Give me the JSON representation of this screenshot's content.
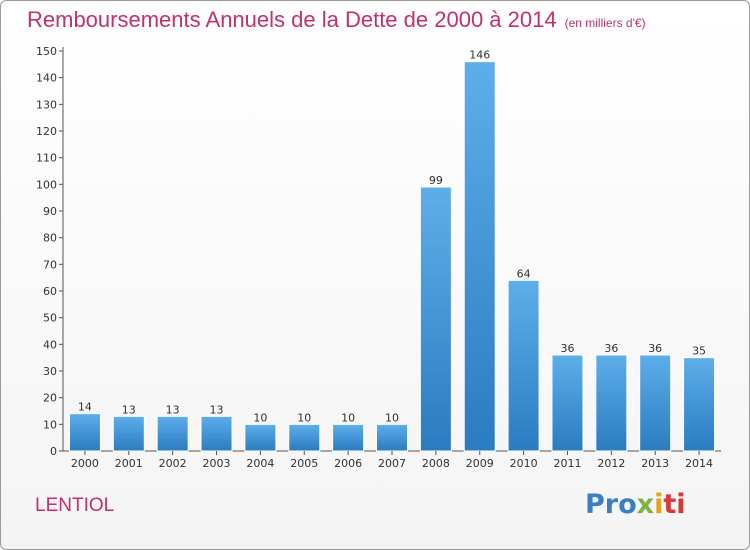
{
  "header": {
    "title": "Remboursements Annuels de la Dette de 2000 à 2014",
    "unit": "(en milliers d'€)"
  },
  "commune": "LENTIOL",
  "logo": {
    "text": "Proxiti",
    "parts": [
      "Pro",
      "x",
      "i",
      "ti"
    ]
  },
  "colors": {
    "title": "#c3306e",
    "bar_light": "#5eaeea",
    "bar_dark": "#2a7cc0"
  },
  "chart_data": {
    "type": "bar",
    "title": "Remboursements Annuels de la Dette de 2000 à 2014",
    "xlabel": "",
    "ylabel": "",
    "categories": [
      "2000",
      "2001",
      "2002",
      "2003",
      "2004",
      "2005",
      "2006",
      "2007",
      "2008",
      "2009",
      "2010",
      "2011",
      "2012",
      "2013",
      "2014"
    ],
    "values": [
      14,
      13,
      13,
      13,
      10,
      10,
      10,
      10,
      99,
      146,
      64,
      36,
      36,
      36,
      35
    ],
    "ylim": [
      0,
      150
    ],
    "yticks": [
      0,
      10,
      20,
      30,
      40,
      50,
      60,
      70,
      80,
      90,
      100,
      110,
      120,
      130,
      140,
      150
    ],
    "grid": false,
    "legend": "none"
  }
}
